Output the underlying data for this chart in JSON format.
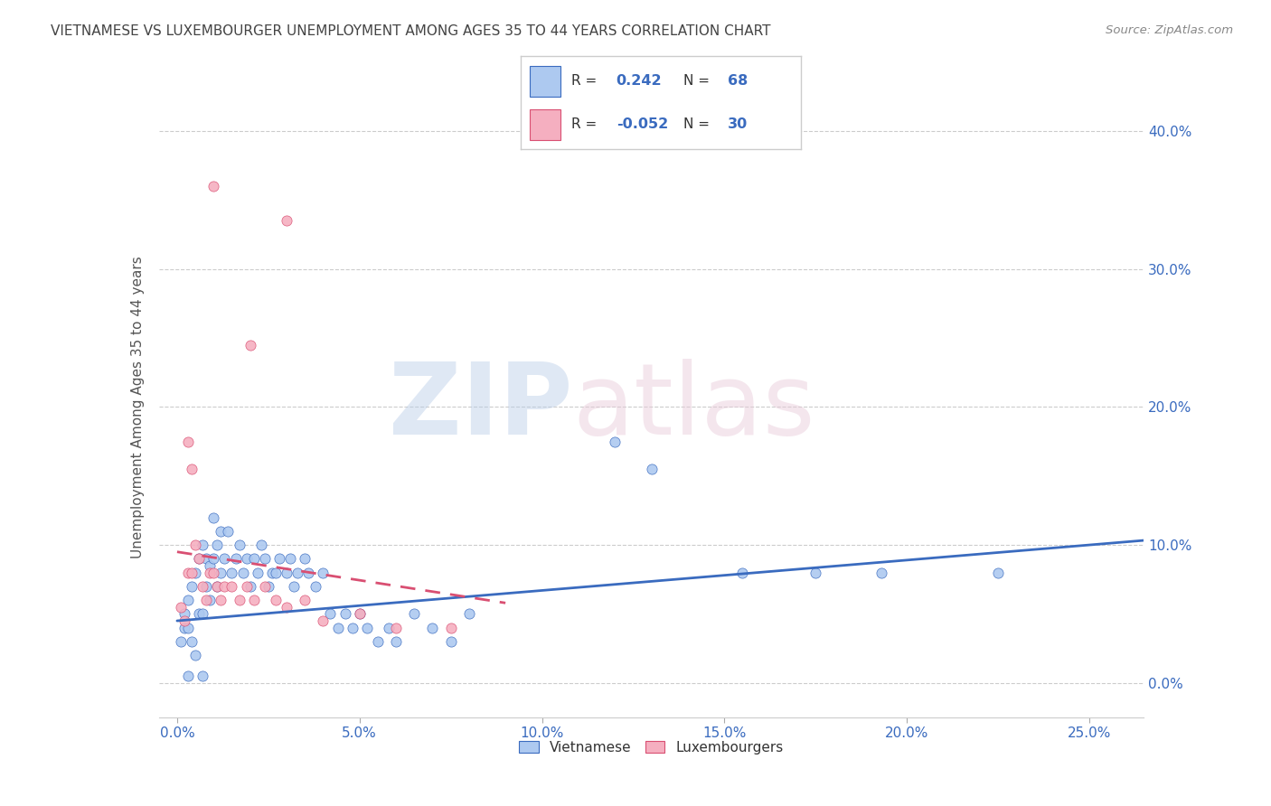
{
  "title": "VIETNAMESE VS LUXEMBOURGER UNEMPLOYMENT AMONG AGES 35 TO 44 YEARS CORRELATION CHART",
  "source": "Source: ZipAtlas.com",
  "ylabel": "Unemployment Among Ages 35 to 44 years",
  "xlabel_ticks": [
    "0.0%",
    "5.0%",
    "10.0%",
    "15.0%",
    "20.0%",
    "25.0%"
  ],
  "xlabel_vals": [
    0.0,
    0.05,
    0.1,
    0.15,
    0.2,
    0.25
  ],
  "ylabel_ticks": [
    "0.0%",
    "10.0%",
    "20.0%",
    "30.0%",
    "40.0%"
  ],
  "ylabel_vals": [
    0.0,
    0.1,
    0.2,
    0.3,
    0.4
  ],
  "xlim": [
    -0.005,
    0.265
  ],
  "ylim": [
    -0.025,
    0.425
  ],
  "R_vietnamese": 0.242,
  "N_vietnamese": 68,
  "R_luxembourger": -0.052,
  "N_luxembourger": 30,
  "vietnamese_color": "#adc9f0",
  "luxembourger_color": "#f5afc0",
  "vietnamese_line_color": "#3a6bbf",
  "luxembourger_line_color": "#d94f72",
  "background_color": "#ffffff",
  "grid_color": "#cccccc",
  "title_color": "#444444",
  "axis_label_color": "#3a6bbf",
  "legend_text_color": "#3a6bbf"
}
